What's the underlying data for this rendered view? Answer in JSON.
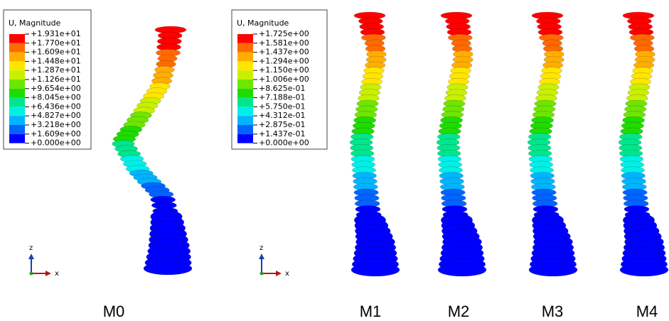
{
  "legends": [
    {
      "title": "U, Magnitude",
      "labels": [
        "+1.931e+01",
        "+1.770e+01",
        "+1.609e+01",
        "+1.448e+01",
        "+1.287e+01",
        "+1.126e+01",
        "+9.654e+00",
        "+8.045e+00",
        "+6.436e+00",
        "+4.827e+00",
        "+3.218e+00",
        "+1.609e+00",
        "+0.000e+00"
      ]
    },
    {
      "title": "U, Magnitude",
      "labels": [
        "+1.725e+00",
        "+1.581e+00",
        "+1.437e+00",
        "+1.294e+00",
        "+1.150e+00",
        "+1.006e+00",
        "+8.625e-01",
        "+7.188e-01",
        "+5.750e-01",
        "+4.312e-01",
        "+2.875e-01",
        "+1.437e-01",
        "+0.000e+00"
      ]
    }
  ],
  "axes": [
    {
      "z": "z",
      "x": "x"
    },
    {
      "z": "z",
      "x": "x"
    }
  ],
  "panels": [
    {
      "label": "M0"
    },
    {
      "label": "M1"
    },
    {
      "label": "M2"
    },
    {
      "label": "M3"
    },
    {
      "label": "M4"
    }
  ]
}
